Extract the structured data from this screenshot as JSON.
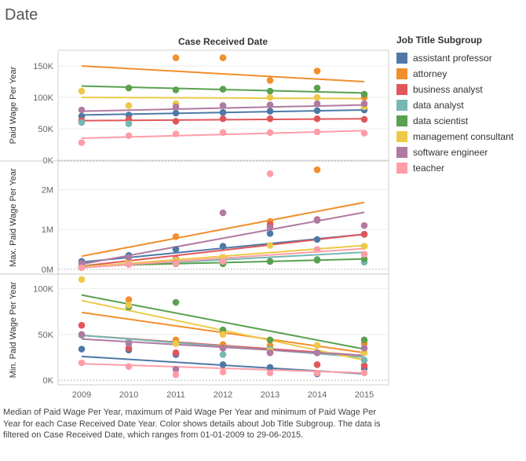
{
  "title": "Date",
  "caption": "Median of Paid Wage Per Year, maximum of  Paid Wage Per Year and minimum of Paid Wage Per Year for each Case Received Date Year.  Color shows details about Job Title Subgroup. The data is filtered on Case Received Date, which ranges from 01-01-2009 to 29-06-2015.",
  "legend": {
    "title": "Job Title Subgroup",
    "items": [
      {
        "label": "assistant professor",
        "color": "#4e79a7"
      },
      {
        "label": "attorney",
        "color": "#f28e2b"
      },
      {
        "label": "business analyst",
        "color": "#e15759"
      },
      {
        "label": "data analyst",
        "color": "#76b7b2"
      },
      {
        "label": "data scientist",
        "color": "#59a14f"
      },
      {
        "label": "management consultant",
        "color": "#edc948"
      },
      {
        "label": "software engineer",
        "color": "#b07aa1"
      },
      {
        "label": "teacher",
        "color": "#ff9da7"
      }
    ]
  },
  "chart_data": {
    "type": "scatter",
    "column_header": "Case Received Date",
    "x": [
      2009,
      2010,
      2011,
      2012,
      2013,
      2014,
      2015
    ],
    "x_tick_labels": [
      "2009",
      "2010",
      "2011",
      "2012",
      "2013",
      "2014",
      "2015"
    ],
    "trend_lines": true,
    "panels": [
      {
        "ylabel": "Paid Wage Per Year",
        "ylim": [
          0,
          175000
        ],
        "ticks": [
          0,
          50000,
          100000,
          150000
        ],
        "tick_labels": [
          "0K",
          "50K",
          "100K",
          "150K"
        ],
        "series": [
          {
            "name": "assistant professor",
            "values": [
              70000,
              72000,
              75000,
              76000,
              78000,
              79000,
              80000
            ],
            "trend": [
              72000,
              80000
            ]
          },
          {
            "name": "attorney",
            "values": [
              null,
              115000,
              163000,
              163000,
              127000,
              142000,
              100000
            ],
            "trend": [
              150000,
              125000
            ]
          },
          {
            "name": "business analyst",
            "values": [
              63000,
              65000,
              62000,
              66000,
              66000,
              66000,
              65000
            ],
            "trend": [
              63000,
              66000
            ]
          },
          {
            "name": "data analyst",
            "values": [
              60000,
              58000,
              null,
              null,
              null,
              null,
              null
            ],
            "trend": null
          },
          {
            "name": "data scientist",
            "values": [
              null,
              115000,
              112000,
              113000,
              110000,
              115000,
              105000
            ],
            "trend": [
              118000,
              107000
            ]
          },
          {
            "name": "management consultant",
            "values": [
              110000,
              87000,
              90000,
              null,
              100000,
              100000,
              85000
            ],
            "trend": [
              100000,
              98000
            ]
          },
          {
            "name": "software engineer",
            "values": [
              80000,
              null,
              85000,
              87000,
              88000,
              90000,
              90000
            ],
            "trend": [
              78000,
              88000
            ]
          },
          {
            "name": "teacher",
            "values": [
              28000,
              39000,
              42000,
              44000,
              44000,
              45000,
              43000
            ],
            "trend": [
              35000,
              47000
            ]
          }
        ]
      },
      {
        "ylabel": "Max. Paid Wage Per Year",
        "ylim": [
          -100000,
          2700000
        ],
        "ticks": [
          0,
          1000000,
          2000000
        ],
        "tick_labels": [
          "0M",
          "1M",
          "2M"
        ],
        "series": [
          {
            "name": "assistant professor",
            "values": [
              200000,
              350000,
              500000,
              580000,
              900000,
              750000,
              880000
            ],
            "trend": [
              180000,
              880000
            ]
          },
          {
            "name": "attorney",
            "values": [
              null,
              220000,
              820000,
              null,
              1200000,
              2500000,
              580000
            ],
            "trend": [
              330000,
              1680000
            ]
          },
          {
            "name": "business analyst",
            "values": [
              60000,
              200000,
              260000,
              300000,
              1120000,
              1250000,
              880000
            ],
            "trend": [
              80000,
              880000
            ]
          },
          {
            "name": "data analyst",
            "values": [
              50000,
              150000,
              160000,
              170000,
              200000,
              250000,
              180000
            ],
            "trend": [
              50000,
              430000
            ]
          },
          {
            "name": "data scientist",
            "values": [
              null,
              130000,
              140000,
              140000,
              200000,
              230000,
              260000
            ],
            "trend": [
              80000,
              260000
            ]
          },
          {
            "name": "management consultant",
            "values": [
              110000,
              200000,
              230000,
              300000,
              600000,
              500000,
              580000
            ],
            "trend": [
              60000,
              600000
            ]
          },
          {
            "name": "software engineer",
            "values": [
              150000,
              300000,
              160000,
              1420000,
              1050000,
              1230000,
              1100000
            ],
            "trend": [
              130000,
              1430000
            ]
          },
          {
            "name": "teacher",
            "values": [
              40000,
              120000,
              150000,
              200000,
              2400000,
              500000,
              380000
            ],
            "trend": [
              40000,
              520000
            ]
          }
        ]
      },
      {
        "ylabel": "Min. Paid Wage Per Year",
        "ylim": [
          -5000,
          115000
        ],
        "ticks": [
          0,
          50000,
          100000
        ],
        "tick_labels": [
          "0K",
          "50K",
          "100K"
        ],
        "series": [
          {
            "name": "assistant professor",
            "values": [
              34000,
              33000,
              28000,
              17000,
              14000,
              7000,
              13000
            ],
            "trend": [
              26000,
              7000
            ]
          },
          {
            "name": "attorney",
            "values": [
              null,
              88000,
              44000,
              39000,
              38000,
              38000,
              40000
            ],
            "trend": [
              74000,
              30000
            ]
          },
          {
            "name": "business analyst",
            "values": [
              60000,
              35000,
              30000,
              35000,
              30000,
              17000,
              16000
            ],
            "trend": [
              49000,
              27000
            ]
          },
          {
            "name": "data analyst",
            "values": [
              49000,
              42000,
              40000,
              28000,
              34000,
              30000,
              22000
            ],
            "trend": [
              49000,
              25000
            ]
          },
          {
            "name": "data scientist",
            "values": [
              null,
              80000,
              85000,
              55000,
              44000,
              30000,
              44000
            ],
            "trend": [
              93000,
              34000
            ]
          },
          {
            "name": "management consultant",
            "values": [
              110000,
              82000,
              40000,
              50000,
              32000,
              38000,
              30000
            ],
            "trend": [
              87000,
              22000
            ]
          },
          {
            "name": "software engineer",
            "values": [
              50000,
              40000,
              12000,
              35000,
              30000,
              30000,
              35000
            ],
            "trend": [
              45000,
              27000
            ]
          },
          {
            "name": "teacher",
            "values": [
              19000,
              15000,
              6000,
              9000,
              8000,
              8000,
              8000
            ],
            "trend": [
              18000,
              8000
            ]
          }
        ]
      }
    ]
  }
}
